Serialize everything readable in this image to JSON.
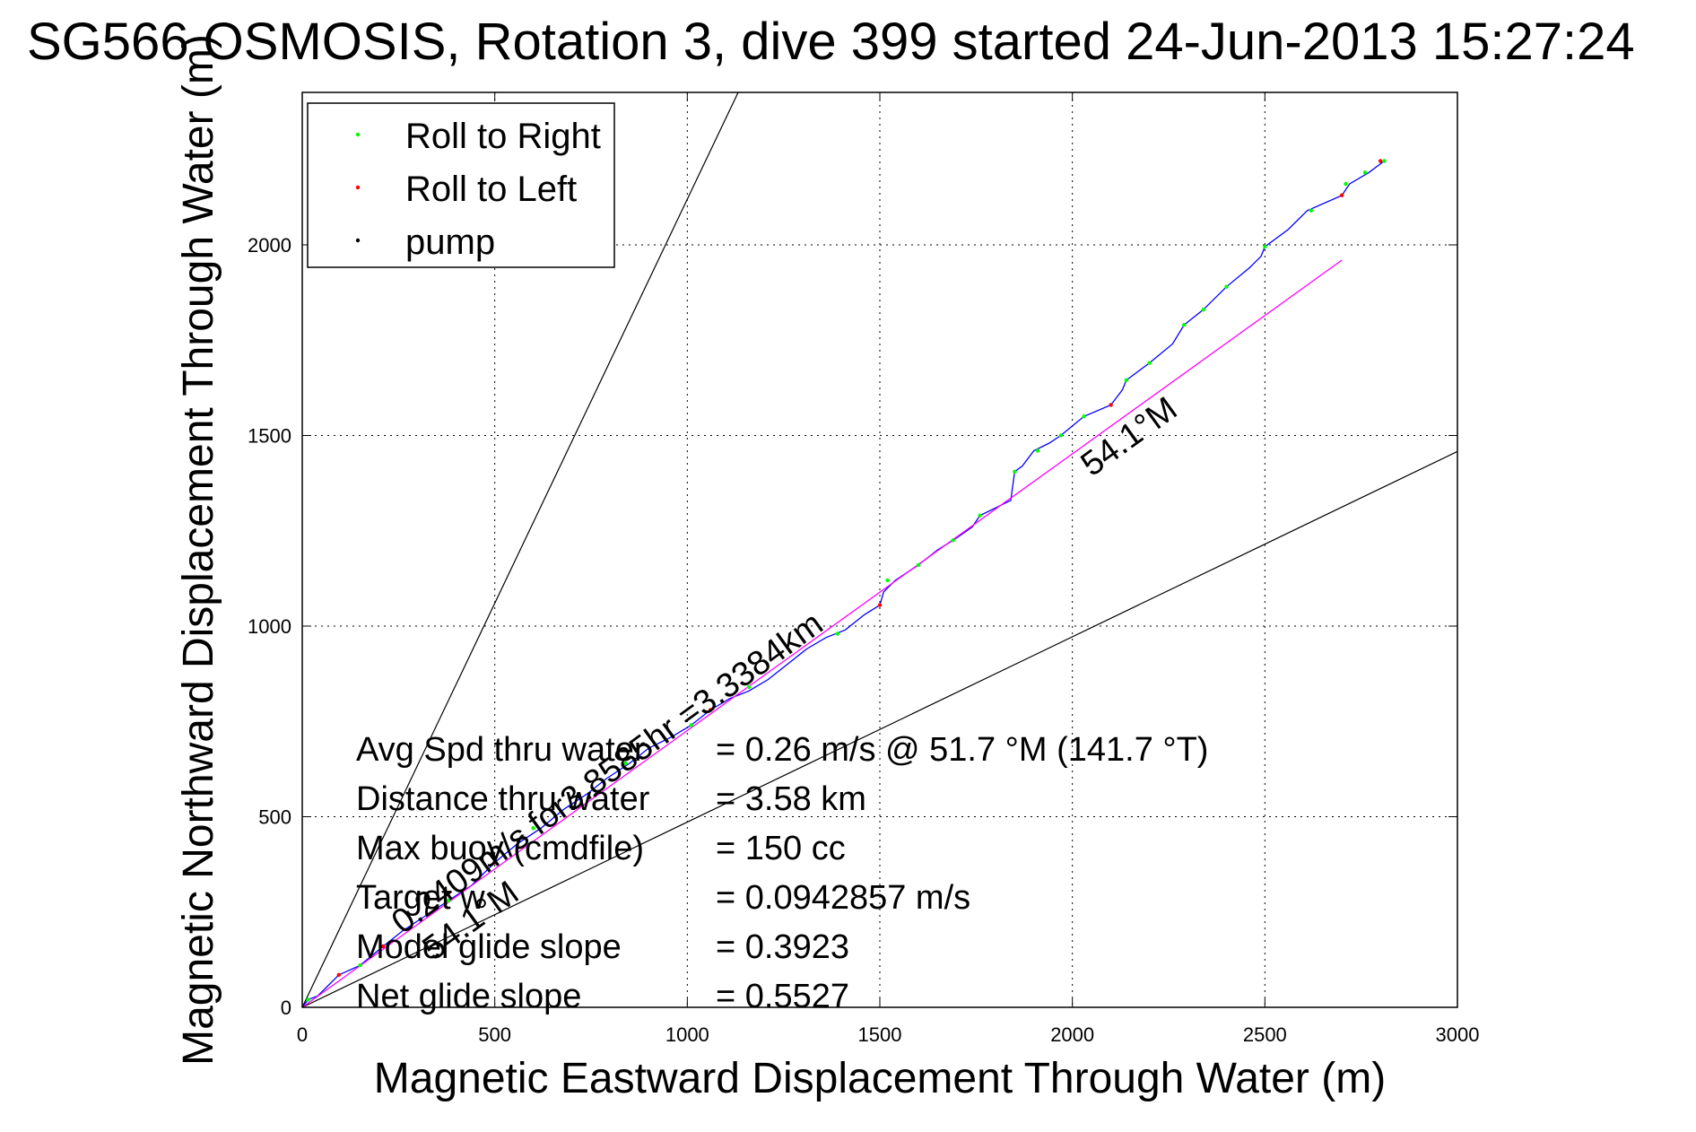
{
  "chart_data": {
    "type": "line",
    "title": "SG566 OSMOSIS, Rotation 3, dive 399 started 24-Jun-2013 15:27:24",
    "xlabel": "Magnetic Eastward Displacement Through Water (m)",
    "ylabel": "Magnetic Northward Displacement Through Water (m)",
    "xlim": [
      0,
      3000
    ],
    "ylim": [
      0,
      2400
    ],
    "x_ticks": [
      "0",
      "500",
      "1000",
      "1500",
      "2000",
      "2500",
      "3000"
    ],
    "y_ticks": [
      "0",
      "500",
      "1000",
      "1500",
      "2000"
    ],
    "grid": true,
    "legend_position": "top-left",
    "legend": [
      {
        "label": "Roll to Right",
        "color": "#00ff00"
      },
      {
        "label": "Roll to Left",
        "color": "#ff0000"
      },
      {
        "label": "pump",
        "color": "#000000"
      }
    ],
    "series": [
      {
        "name": "track",
        "color": "#0000ff",
        "points": [
          [
            0,
            0
          ],
          [
            15,
            20
          ],
          [
            40,
            30
          ],
          [
            95,
            85
          ],
          [
            150,
            110
          ],
          [
            210,
            160
          ],
          [
            260,
            200
          ],
          [
            320,
            240
          ],
          [
            380,
            280
          ],
          [
            440,
            320
          ],
          [
            500,
            380
          ],
          [
            560,
            430
          ],
          [
            620,
            470
          ],
          [
            680,
            520
          ],
          [
            740,
            560
          ],
          [
            790,
            600
          ],
          [
            850,
            640
          ],
          [
            900,
            680
          ],
          [
            960,
            710
          ],
          [
            1010,
            740
          ],
          [
            1060,
            780
          ],
          [
            1110,
            810
          ],
          [
            1160,
            830
          ],
          [
            1210,
            860
          ],
          [
            1260,
            900
          ],
          [
            1310,
            940
          ],
          [
            1360,
            970
          ],
          [
            1410,
            990
          ],
          [
            1460,
            1030
          ],
          [
            1500,
            1055
          ],
          [
            1510,
            1090
          ],
          [
            1540,
            1120
          ],
          [
            1600,
            1160
          ],
          [
            1650,
            1200
          ],
          [
            1690,
            1225
          ],
          [
            1740,
            1260
          ],
          [
            1760,
            1290
          ],
          [
            1800,
            1310
          ],
          [
            1840,
            1330
          ],
          [
            1850,
            1405
          ],
          [
            1870,
            1420
          ],
          [
            1900,
            1460
          ],
          [
            1940,
            1480
          ],
          [
            1970,
            1500
          ],
          [
            2030,
            1550
          ],
          [
            2100,
            1580
          ],
          [
            2130,
            1620
          ],
          [
            2140,
            1645
          ],
          [
            2200,
            1690
          ],
          [
            2260,
            1740
          ],
          [
            2290,
            1790
          ],
          [
            2340,
            1830
          ],
          [
            2400,
            1890
          ],
          [
            2460,
            1940
          ],
          [
            2490,
            1970
          ],
          [
            2500,
            1995
          ],
          [
            2560,
            2040
          ],
          [
            2610,
            2090
          ],
          [
            2700,
            2130
          ],
          [
            2720,
            2160
          ],
          [
            2770,
            2190
          ],
          [
            2810,
            2220
          ]
        ]
      },
      {
        "name": "heading line",
        "color": "#ff00ff",
        "points": [
          [
            0,
            0
          ],
          [
            2700,
            1960
          ]
        ]
      }
    ],
    "roll_right_points": [
      [
        15,
        20
      ],
      [
        150,
        110
      ],
      [
        380,
        280
      ],
      [
        600,
        470
      ],
      [
        840,
        640
      ],
      [
        1010,
        740
      ],
      [
        1160,
        840
      ],
      [
        1390,
        980
      ],
      [
        1520,
        1120
      ],
      [
        1600,
        1160
      ],
      [
        1690,
        1225
      ],
      [
        1760,
        1290
      ],
      [
        1850,
        1405
      ],
      [
        1910,
        1460
      ],
      [
        1970,
        1500
      ],
      [
        2030,
        1550
      ],
      [
        2140,
        1645
      ],
      [
        2200,
        1690
      ],
      [
        2290,
        1790
      ],
      [
        2340,
        1830
      ],
      [
        2400,
        1890
      ],
      [
        2500,
        1995
      ],
      [
        2620,
        2090
      ],
      [
        2710,
        2160
      ],
      [
        2760,
        2190
      ],
      [
        2810,
        2220
      ]
    ],
    "roll_left_points": [
      [
        0,
        0
      ],
      [
        95,
        85
      ],
      [
        210,
        160
      ],
      [
        500,
        380
      ],
      [
        1060,
        780
      ],
      [
        1500,
        1055
      ],
      [
        2100,
        1580
      ],
      [
        2700,
        2130
      ],
      [
        2800,
        2220
      ]
    ],
    "pump_points": [
      [
        0,
        0
      ]
    ],
    "reference_lines": [
      {
        "slope": 2.12,
        "color": "#000000"
      },
      {
        "slope": 0.486,
        "color": "#000000"
      }
    ],
    "annotations": [
      {
        "text": "54.1°M",
        "x": 2050,
        "y": 1390,
        "angle": 35.9
      },
      {
        "text": "54.1°M",
        "x": 340,
        "y": 120,
        "angle": 35.9
      },
      {
        "text": "0.2409m/s for3.8585hr =3.3384km",
        "x": 260,
        "y": 190,
        "angle": 35.9
      }
    ],
    "stats": [
      {
        "label": "Avg Spd thru water",
        "value": "=  0.26 m/s @  51.7 °M (141.7 °T)"
      },
      {
        "label": "Distance thru water",
        "value": "=  3.58 km"
      },
      {
        "label": "Max buoy  (cmdfile)",
        "value": "= 150 cc"
      },
      {
        "label": "Target w",
        "value": "= 0.0942857 m/s"
      },
      {
        "label": "Model glide slope",
        "value": "= 0.3923"
      },
      {
        "label": "Net glide slope",
        "value": "= 0.5527"
      }
    ]
  }
}
